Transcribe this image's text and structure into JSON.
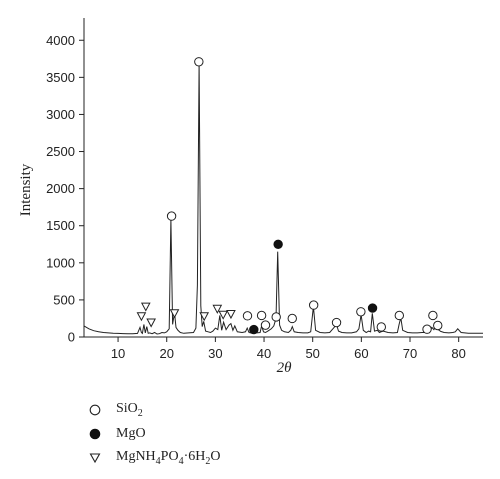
{
  "chart_data": {
    "type": "line",
    "xlabel": "2θ",
    "ylabel": "Intensity",
    "xlim": [
      3,
      85
    ],
    "ylim": [
      0,
      4300
    ],
    "x_ticks": [
      10,
      20,
      30,
      40,
      50,
      60,
      70,
      80
    ],
    "y_ticks": [
      0,
      500,
      1000,
      1500,
      2000,
      2500,
      3000,
      3500,
      4000
    ],
    "grid": false,
    "line_color": "#222222",
    "series": [
      {
        "x": [
          3,
          4,
          5,
          6,
          7,
          8,
          9,
          10,
          11,
          12,
          13,
          14,
          14.5,
          14.8,
          15,
          15.3,
          15.6,
          15.9,
          16.2,
          16.5,
          17,
          17.5,
          18,
          18.5,
          19,
          19.5,
          20,
          20.5,
          20.85,
          21.2,
          21.6,
          21.9,
          22.3,
          22.8,
          23.5,
          24.5,
          25.5,
          26,
          26.3,
          26.65,
          27,
          27.3,
          27.6,
          28,
          28.5,
          29,
          29.5,
          30,
          30.5,
          30.9,
          31.3,
          31.7,
          32.2,
          32.8,
          33.2,
          33.6,
          34,
          34.5,
          35.5,
          36.2,
          36.55,
          36.9,
          37.5,
          38.5,
          39.2,
          39.5,
          39.9,
          40.3,
          40.8,
          41.5,
          42,
          42.45,
          42.8,
          43.2,
          43.6,
          44.2,
          45,
          45.5,
          45.8,
          46.2,
          47,
          48,
          49,
          49.6,
          50.15,
          50.6,
          51.5,
          52.5,
          53.5,
          54.4,
          54.9,
          55.3,
          56,
          57,
          58,
          59,
          59.5,
          59.95,
          60.4,
          61,
          61.5,
          61.9,
          62.25,
          62.7,
          63.3,
          63.7,
          64.05,
          64.5,
          65.5,
          66.5,
          67.4,
          67.75,
          68.1,
          68.5,
          69.5,
          70.5,
          71.5,
          72.5,
          73.2,
          73.5,
          74,
          74.5,
          74.9,
          75.4,
          75.8,
          76.3,
          77,
          78,
          78.8,
          79.3,
          79.8,
          80.5,
          82,
          85
        ],
        "y": [
          150,
          110,
          85,
          70,
          60,
          55,
          50,
          48,
          46,
          45,
          44,
          48,
          130,
          60,
          48,
          170,
          55,
          140,
          50,
          55,
          45,
          60,
          40,
          45,
          60,
          55,
          70,
          110,
          1590,
          170,
          330,
          130,
          90,
          60,
          50,
          55,
          60,
          120,
          700,
          3700,
          420,
          140,
          210,
          80,
          70,
          60,
          80,
          120,
          100,
          290,
          90,
          200,
          100,
          160,
          180,
          90,
          150,
          70,
          60,
          70,
          120,
          60,
          50,
          55,
          60,
          150,
          70,
          60,
          80,
          110,
          150,
          250,
          1150,
          160,
          90,
          70,
          60,
          90,
          140,
          70,
          60,
          55,
          55,
          70,
          410,
          90,
          60,
          55,
          60,
          130,
          170,
          80,
          60,
          55,
          55,
          70,
          110,
          300,
          90,
          60,
          80,
          70,
          320,
          80,
          90,
          60,
          70,
          80,
          60,
          55,
          60,
          170,
          260,
          90,
          60,
          55,
          55,
          60,
          60,
          90,
          60,
          130,
          100,
          160,
          100,
          75,
          60,
          55,
          60,
          70,
          110,
          60,
          50,
          50
        ]
      }
    ],
    "markers": [
      {
        "type": "circle",
        "x": 21,
        "y": 1630
      },
      {
        "type": "circle",
        "x": 26.6,
        "y": 3710
      },
      {
        "type": "circle",
        "x": 36.6,
        "y": 285
      },
      {
        "type": "circle",
        "x": 39.5,
        "y": 290
      },
      {
        "type": "circle",
        "x": 40.3,
        "y": 160
      },
      {
        "type": "circle",
        "x": 42.5,
        "y": 270
      },
      {
        "type": "circle",
        "x": 45.8,
        "y": 250
      },
      {
        "type": "circle",
        "x": 50.2,
        "y": 430
      },
      {
        "type": "circle",
        "x": 54.9,
        "y": 195
      },
      {
        "type": "circle",
        "x": 59.9,
        "y": 340
      },
      {
        "type": "circle",
        "x": 64.1,
        "y": 135
      },
      {
        "type": "circle",
        "x": 67.8,
        "y": 290
      },
      {
        "type": "circle",
        "x": 73.5,
        "y": 105
      },
      {
        "type": "circle",
        "x": 74.7,
        "y": 290
      },
      {
        "type": "circle",
        "x": 75.7,
        "y": 155
      },
      {
        "type": "dot",
        "x": 37.9,
        "y": 100
      },
      {
        "type": "dot",
        "x": 42.9,
        "y": 1250
      },
      {
        "type": "dot",
        "x": 62.3,
        "y": 390
      },
      {
        "type": "triangle",
        "x": 14.8,
        "y": 280
      },
      {
        "type": "triangle",
        "x": 15.7,
        "y": 410
      },
      {
        "type": "triangle",
        "x": 16.8,
        "y": 195
      },
      {
        "type": "triangle",
        "x": 21.6,
        "y": 320
      },
      {
        "type": "triangle",
        "x": 27.7,
        "y": 280
      },
      {
        "type": "triangle",
        "x": 30.4,
        "y": 380
      },
      {
        "type": "triangle",
        "x": 31.6,
        "y": 300
      },
      {
        "type": "triangle",
        "x": 33.2,
        "y": 310
      }
    ],
    "legend": [
      {
        "symbol": "circle",
        "label_main": "SiO",
        "label_sub": "2",
        "label_rest": ""
      },
      {
        "symbol": "dot",
        "label_main": "MgO",
        "label_sub": "",
        "label_rest": ""
      }
    ],
    "legend_mg": {
      "parts": [
        "MgNH",
        "4",
        "PO",
        "4",
        "·6H",
        "2",
        "O"
      ]
    },
    "legend_placement": "bottom-left"
  }
}
